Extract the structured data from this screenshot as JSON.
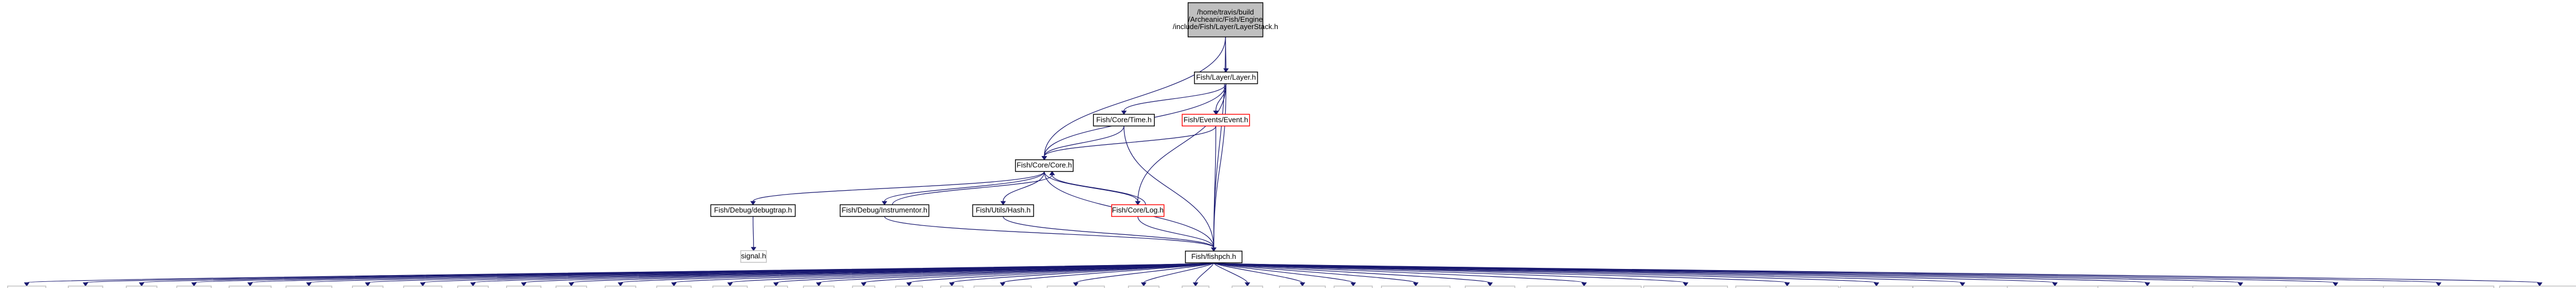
{
  "graph": {
    "nodes": [
      {
        "id": "root",
        "lines": [
          "/home/travis/build",
          "/Archeanic/Fish/Engine",
          "/include/Fish/Layer/LayerStack.h"
        ],
        "style": "root"
      },
      {
        "id": "layer",
        "lines": [
          "Fish/Layer/Layer.h"
        ],
        "style": "normal"
      },
      {
        "id": "time",
        "lines": [
          "Fish/Core/Time.h"
        ],
        "style": "normal"
      },
      {
        "id": "event",
        "lines": [
          "Fish/Events/Event.h"
        ],
        "style": "red"
      },
      {
        "id": "core",
        "lines": [
          "Fish/Core/Core.h"
        ],
        "style": "normal"
      },
      {
        "id": "debugtrap",
        "lines": [
          "Fish/Debug/debugtrap.h"
        ],
        "style": "normal"
      },
      {
        "id": "instrumentor",
        "lines": [
          "Fish/Debug/Instrumentor.h"
        ],
        "style": "normal"
      },
      {
        "id": "hash",
        "lines": [
          "Fish/Utils/Hash.h"
        ],
        "style": "normal"
      },
      {
        "id": "log",
        "lines": [
          "Fish/Core/Log.h"
        ],
        "style": "red"
      },
      {
        "id": "signal",
        "lines": [
          "signal.h"
        ],
        "style": "sys"
      },
      {
        "id": "fishpch",
        "lines": [
          "Fish/fishpch.h"
        ],
        "style": "normal"
      },
      {
        "id": "iostream",
        "lines": [
          "iostream"
        ],
        "style": "sys"
      },
      {
        "id": "iomanip",
        "lines": [
          "iomanip"
        ],
        "style": "sys"
      },
      {
        "id": "memory",
        "lines": [
          "memory"
        ],
        "style": "sys"
      },
      {
        "id": "utility",
        "lines": [
          "utility"
        ],
        "style": "sys"
      },
      {
        "id": "algorithm",
        "lines": [
          "algorithm"
        ],
        "style": "sys"
      },
      {
        "id": "functional",
        "lines": [
          "functional"
        ],
        "style": "sys"
      },
      {
        "id": "chrono",
        "lines": [
          "chrono"
        ],
        "style": "sys"
      },
      {
        "id": "typeinfo",
        "lines": [
          "typeinfo"
        ],
        "style": "sys"
      },
      {
        "id": "cfloat",
        "lines": [
          "cfloat"
        ],
        "style": "sys"
      },
      {
        "id": "cassert",
        "lines": [
          "cassert"
        ],
        "style": "sys"
      },
      {
        "id": "limits",
        "lines": [
          "limits"
        ],
        "style": "sys"
      },
      {
        "id": "string",
        "lines": [
          "string"
        ],
        "style": "sys"
      },
      {
        "id": "sstream",
        "lines": [
          "sstream"
        ],
        "style": "sys"
      },
      {
        "id": "fstream",
        "lines": [
          "fstream"
        ],
        "style": "sys"
      },
      {
        "id": "list",
        "lines": [
          "list"
        ],
        "style": "sys"
      },
      {
        "id": "vector",
        "lines": [
          "vector"
        ],
        "style": "sys"
      },
      {
        "id": "map",
        "lines": [
          "map"
        ],
        "style": "sys"
      },
      {
        "id": "deque",
        "lines": [
          "deque"
        ],
        "style": "sys"
      },
      {
        "id": "set",
        "lines": [
          "set"
        ],
        "style": "sys"
      },
      {
        "id": "unordered_map",
        "lines": [
          "unordered_map"
        ],
        "style": "sys"
      },
      {
        "id": "unordered_set",
        "lines": [
          "unordered_set"
        ],
        "style": "sys"
      },
      {
        "id": "random",
        "lines": [
          "random"
        ],
        "style": "sys"
      },
      {
        "id": "mutex",
        "lines": [
          "mutex"
        ],
        "style": "sys"
      },
      {
        "id": "thread",
        "lines": [
          "thread"
        ],
        "style": "sys"
      },
      {
        "id": "sysstat",
        "lines": [
          "sys/stat.h"
        ],
        "style": "sys"
      },
      {
        "id": "iterator",
        "lines": [
          "iterator"
        ],
        "style": "sys"
      },
      {
        "id": "spdlog",
        "lines": [
          "spdlog/fmt/fmt.h"
        ],
        "style": "sys"
      },
      {
        "id": "glm",
        "lines": [
          "glm/glm.hpp"
        ],
        "style": "sys"
      },
      {
        "id": "glm_mt",
        "lines": [
          "glm/gtc/matrix_transform.hpp"
        ],
        "style": "sys"
      },
      {
        "id": "glm_tp",
        "lines": [
          "glm/gtc/type_ptr.hpp"
        ],
        "style": "sys"
      },
      {
        "id": "glm_compat",
        "lines": [
          "glm/gtx/compatibility.hpp"
        ],
        "style": "sys"
      },
      {
        "id": "cereal",
        "lines": [
          "cereal/cereal.hpp"
        ],
        "style": "sys"
      },
      {
        "id": "cereal_json",
        "lines": [
          "cereal/archives/json.hpp"
        ],
        "style": "sys"
      },
      {
        "id": "cereal_string",
        "lines": [
          "cereal/types/string.hpp"
        ],
        "style": "sys"
      },
      {
        "id": "cereal_utility",
        "lines": [
          "cereal/types/utility.hpp"
        ],
        "style": "sys"
      },
      {
        "id": "cereal_memory",
        "lines": [
          "cereal/types/memory.hpp"
        ],
        "style": "sys"
      },
      {
        "id": "cereal_complex",
        "lines": [
          "cereal/types/complex.hpp"
        ],
        "style": "sys"
      },
      {
        "id": "cereal_base",
        "lines": [
          "cereal/types/base_class.hpp"
        ],
        "style": "sys"
      },
      {
        "id": "icons",
        "lines": [
          "IconsFontAwesome5.h"
        ],
        "style": "sys"
      }
    ],
    "edges": [
      [
        "root",
        "layer"
      ],
      [
        "root",
        "core"
      ],
      [
        "root",
        "fishpch"
      ],
      [
        "layer",
        "time"
      ],
      [
        "layer",
        "event"
      ],
      [
        "layer",
        "core"
      ],
      [
        "layer",
        "log"
      ],
      [
        "layer",
        "fishpch"
      ],
      [
        "time",
        "core"
      ],
      [
        "time",
        "fishpch"
      ],
      [
        "event",
        "core"
      ],
      [
        "event",
        "fishpch"
      ],
      [
        "core",
        "debugtrap"
      ],
      [
        "core",
        "instrumentor"
      ],
      [
        "core",
        "hash"
      ],
      [
        "core",
        "log"
      ],
      [
        "core",
        "fishpch"
      ],
      [
        "instrumentor",
        "core"
      ],
      [
        "instrumentor",
        "fishpch"
      ],
      [
        "hash",
        "fishpch"
      ],
      [
        "log",
        "core"
      ],
      [
        "log",
        "fishpch"
      ],
      [
        "debugtrap",
        "signal"
      ]
    ]
  }
}
